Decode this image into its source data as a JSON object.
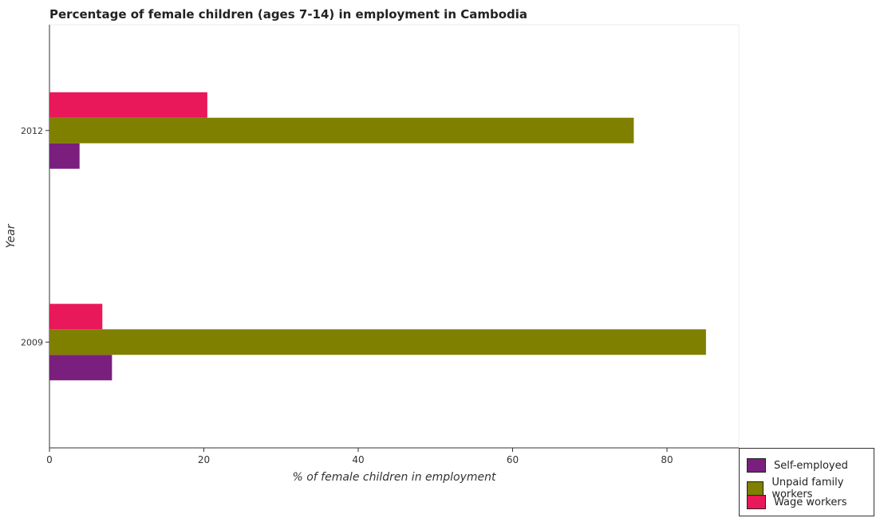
{
  "title": "Percentage of female children (ages 7-14) in employment in Cambodia",
  "chart_data": {
    "type": "bar",
    "orientation": "horizontal",
    "categories": [
      "2009",
      "2012"
    ],
    "series": [
      {
        "name": "Self-employed",
        "color": "#7a1f7e",
        "values": [
          8.1,
          3.9
        ]
      },
      {
        "name": "Unpaid family workers",
        "color": "#7f7f00",
        "values": [
          85.05,
          75.7
        ]
      },
      {
        "name": "Wage workers",
        "color": "#e8185a",
        "values": [
          6.85,
          20.45
        ]
      }
    ],
    "xlabel": "% of female children in employment",
    "ylabel": "Year",
    "xlim": [
      0,
      89.3
    ],
    "xticks": [
      0,
      20,
      40,
      60,
      80
    ],
    "grid": false,
    "legend_position": "bottom-right"
  }
}
